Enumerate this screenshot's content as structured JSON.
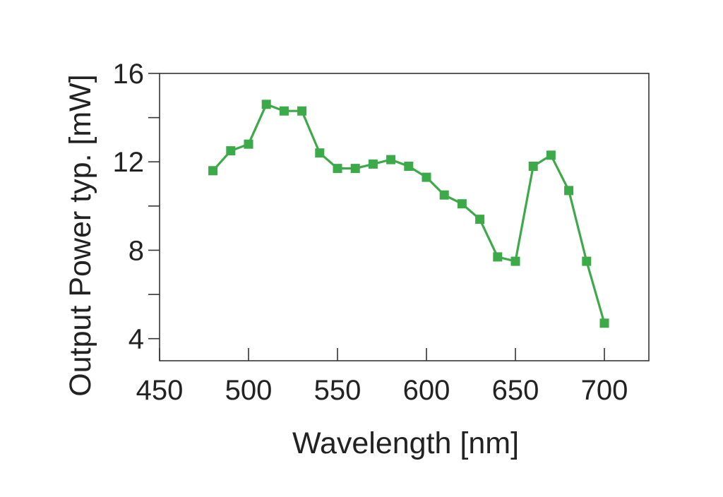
{
  "chart_data": {
    "type": "line",
    "title": "",
    "xlabel": "Wavelength [nm]",
    "ylabel": "Output Power typ. [mW]",
    "xlim": [
      450,
      725
    ],
    "ylim": [
      3,
      16
    ],
    "x_ticks": [
      450,
      500,
      550,
      600,
      650,
      700
    ],
    "x_tick_labels": [
      "450",
      "500",
      "550",
      "600",
      "650",
      "700"
    ],
    "y_major_ticks": [
      4,
      8,
      12,
      16
    ],
    "y_tick_labels": [
      "4",
      "8",
      "12",
      "16"
    ],
    "y_minor_ticks": [
      6,
      10,
      14
    ],
    "grid": false,
    "legend": "none",
    "series": [
      {
        "color": "#3daa4a",
        "marker": "square",
        "points": [
          {
            "x": 480,
            "y": 11.6
          },
          {
            "x": 490,
            "y": 12.5
          },
          {
            "x": 500,
            "y": 12.8
          },
          {
            "x": 510,
            "y": 14.6
          },
          {
            "x": 520,
            "y": 14.3
          },
          {
            "x": 530,
            "y": 14.3
          },
          {
            "x": 540,
            "y": 12.4
          },
          {
            "x": 550,
            "y": 11.7
          },
          {
            "x": 560,
            "y": 11.7
          },
          {
            "x": 570,
            "y": 11.9
          },
          {
            "x": 580,
            "y": 12.1
          },
          {
            "x": 590,
            "y": 11.8
          },
          {
            "x": 600,
            "y": 11.3
          },
          {
            "x": 610,
            "y": 10.5
          },
          {
            "x": 620,
            "y": 10.1
          },
          {
            "x": 630,
            "y": 9.4
          },
          {
            "x": 640,
            "y": 7.7
          },
          {
            "x": 650,
            "y": 7.5
          },
          {
            "x": 660,
            "y": 11.8
          },
          {
            "x": 670,
            "y": 12.3
          },
          {
            "x": 680,
            "y": 10.7
          },
          {
            "x": 690,
            "y": 7.5
          },
          {
            "x": 700,
            "y": 4.7
          }
        ]
      }
    ]
  }
}
